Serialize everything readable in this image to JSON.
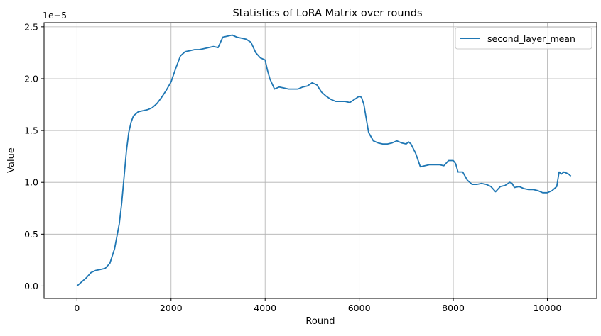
{
  "chart_data": {
    "type": "line",
    "title": "Statistics of LoRA Matrix over rounds",
    "xlabel": "Round",
    "ylabel": "Value",
    "y_offset_text": "1e−5",
    "xlim": [
      -700,
      11050
    ],
    "ylim": [
      -0.12,
      2.54
    ],
    "x_ticks": [
      0,
      2000,
      4000,
      6000,
      8000,
      10000
    ],
    "x_tick_labels": [
      "0",
      "2000",
      "4000",
      "6000",
      "8000",
      "10000"
    ],
    "y_ticks": [
      0.0,
      0.5,
      1.0,
      1.5,
      2.0,
      2.5
    ],
    "y_tick_labels": [
      "0.0",
      "0.5",
      "1.0",
      "1.5",
      "2.0",
      "2.5"
    ],
    "grid": true,
    "legend_position": "top-right",
    "series": [
      {
        "name": "second_layer_mean",
        "color": "#1f77b4",
        "x": [
          0,
          100,
          200,
          300,
          400,
          500,
          600,
          700,
          800,
          900,
          950,
          1000,
          1050,
          1100,
          1150,
          1200,
          1300,
          1400,
          1500,
          1600,
          1700,
          1800,
          1900,
          2000,
          2100,
          2200,
          2300,
          2400,
          2500,
          2600,
          2700,
          2800,
          2900,
          3000,
          3100,
          3200,
          3300,
          3400,
          3500,
          3600,
          3700,
          3800,
          3900,
          4000,
          4050,
          4100,
          4200,
          4300,
          4400,
          4500,
          4600,
          4700,
          4800,
          4900,
          5000,
          5100,
          5200,
          5300,
          5400,
          5500,
          5600,
          5700,
          5800,
          5900,
          6000,
          6050,
          6100,
          6200,
          6300,
          6400,
          6500,
          6600,
          6700,
          6800,
          6900,
          7000,
          7050,
          7100,
          7200,
          7300,
          7400,
          7500,
          7600,
          7700,
          7800,
          7900,
          8000,
          8050,
          8100,
          8200,
          8300,
          8400,
          8500,
          8600,
          8700,
          8800,
          8900,
          9000,
          9100,
          9200,
          9250,
          9300,
          9400,
          9500,
          9600,
          9700,
          9800,
          9900,
          10000,
          10100,
          10200,
          10250,
          10300,
          10350,
          10400,
          10450,
          10500
        ],
        "values": [
          0.0,
          0.04,
          0.08,
          0.13,
          0.15,
          0.16,
          0.17,
          0.22,
          0.36,
          0.6,
          0.8,
          1.05,
          1.3,
          1.48,
          1.58,
          1.64,
          1.68,
          1.69,
          1.7,
          1.72,
          1.76,
          1.82,
          1.89,
          1.97,
          2.1,
          2.22,
          2.26,
          2.27,
          2.28,
          2.28,
          2.29,
          2.3,
          2.31,
          2.3,
          2.4,
          2.41,
          2.42,
          2.4,
          2.39,
          2.38,
          2.35,
          2.25,
          2.2,
          2.18,
          2.08,
          2.0,
          1.9,
          1.92,
          1.91,
          1.9,
          1.9,
          1.9,
          1.92,
          1.93,
          1.96,
          1.94,
          1.87,
          1.83,
          1.8,
          1.78,
          1.78,
          1.78,
          1.77,
          1.8,
          1.83,
          1.82,
          1.75,
          1.48,
          1.4,
          1.38,
          1.37,
          1.37,
          1.38,
          1.4,
          1.38,
          1.37,
          1.39,
          1.37,
          1.28,
          1.15,
          1.16,
          1.17,
          1.17,
          1.17,
          1.16,
          1.21,
          1.21,
          1.18,
          1.1,
          1.1,
          1.02,
          0.98,
          0.98,
          0.99,
          0.98,
          0.96,
          0.91,
          0.96,
          0.97,
          1.0,
          0.99,
          0.95,
          0.96,
          0.94,
          0.93,
          0.93,
          0.92,
          0.9,
          0.9,
          0.92,
          0.96,
          1.1,
          1.08,
          1.1,
          1.09,
          1.08,
          1.06
        ]
      }
    ]
  }
}
